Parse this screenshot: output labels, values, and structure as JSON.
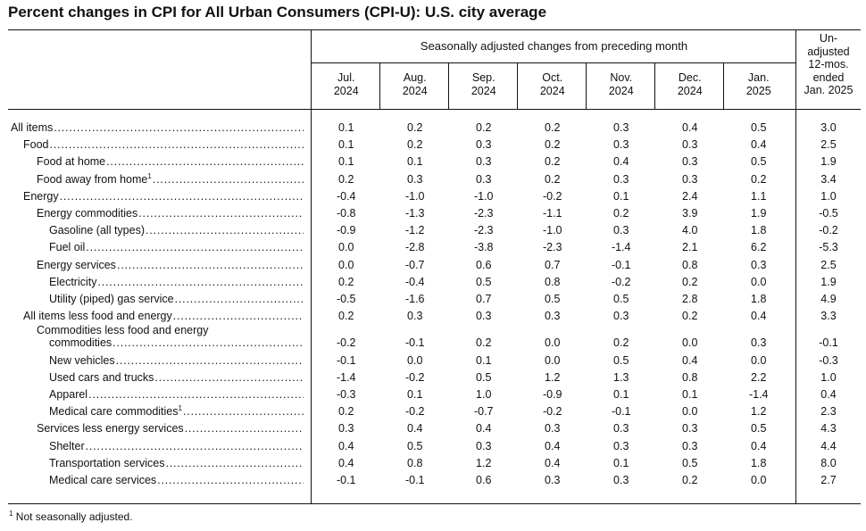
{
  "title": "Percent changes in CPI for All Urban Consumers (CPI-U): U.S. city average",
  "header": {
    "seasonal_label": "Seasonally adjusted changes from preceding month",
    "unadjusted_label": [
      "Un-",
      "adjusted",
      "12-mos.",
      "ended",
      "Jan. 2025"
    ],
    "months": [
      [
        "Jul.",
        "2024"
      ],
      [
        "Aug.",
        "2024"
      ],
      [
        "Sep.",
        "2024"
      ],
      [
        "Oct.",
        "2024"
      ],
      [
        "Nov.",
        "2024"
      ],
      [
        "Dec.",
        "2024"
      ],
      [
        "Jan.",
        "2025"
      ]
    ]
  },
  "rows": [
    {
      "label": "All items",
      "indent": 0,
      "values": [
        "0.1",
        "0.2",
        "0.2",
        "0.2",
        "0.3",
        "0.4",
        "0.5"
      ],
      "unadjusted": "3.0"
    },
    {
      "label": "Food",
      "indent": 1,
      "values": [
        "0.1",
        "0.2",
        "0.3",
        "0.2",
        "0.3",
        "0.3",
        "0.4"
      ],
      "unadjusted": "2.5"
    },
    {
      "label": "Food at home",
      "indent": 2,
      "values": [
        "0.1",
        "0.1",
        "0.3",
        "0.2",
        "0.4",
        "0.3",
        "0.5"
      ],
      "unadjusted": "1.9"
    },
    {
      "label": "Food away from home",
      "sup": "1",
      "indent": 2,
      "values": [
        "0.2",
        "0.3",
        "0.3",
        "0.2",
        "0.3",
        "0.3",
        "0.2"
      ],
      "unadjusted": "3.4"
    },
    {
      "label": "Energy",
      "indent": 1,
      "values": [
        "-0.4",
        "-1.0",
        "-1.0",
        "-0.2",
        "0.1",
        "2.4",
        "1.1"
      ],
      "unadjusted": "1.0"
    },
    {
      "label": "Energy commodities",
      "indent": 2,
      "values": [
        "-0.8",
        "-1.3",
        "-2.3",
        "-1.1",
        "0.2",
        "3.9",
        "1.9"
      ],
      "unadjusted": "-0.5"
    },
    {
      "label": "Gasoline (all types)",
      "indent": 3,
      "values": [
        "-0.9",
        "-1.2",
        "-2.3",
        "-1.0",
        "0.3",
        "4.0",
        "1.8"
      ],
      "unadjusted": "-0.2"
    },
    {
      "label": "Fuel oil",
      "indent": 3,
      "values": [
        "0.0",
        "-2.8",
        "-3.8",
        "-2.3",
        "-1.4",
        "2.1",
        "6.2"
      ],
      "unadjusted": "-5.3"
    },
    {
      "label": "Energy services",
      "indent": 2,
      "values": [
        "0.0",
        "-0.7",
        "0.6",
        "0.7",
        "-0.1",
        "0.8",
        "0.3"
      ],
      "unadjusted": "2.5"
    },
    {
      "label": "Electricity",
      "indent": 3,
      "values": [
        "0.2",
        "-0.4",
        "0.5",
        "0.8",
        "-0.2",
        "0.2",
        "0.0"
      ],
      "unadjusted": "1.9"
    },
    {
      "label": "Utility (piped) gas service",
      "indent": 3,
      "values": [
        "-0.5",
        "-1.6",
        "0.7",
        "0.5",
        "0.5",
        "2.8",
        "1.8"
      ],
      "unadjusted": "4.9"
    },
    {
      "label": "All items less food and energy",
      "indent": 1,
      "values": [
        "0.2",
        "0.3",
        "0.3",
        "0.3",
        "0.3",
        "0.2",
        "0.4"
      ],
      "unadjusted": "3.3"
    },
    {
      "label": "Commodities less food and energy",
      "label2": "commodities",
      "indent": 2,
      "values": [
        "-0.2",
        "-0.1",
        "0.2",
        "0.0",
        "0.2",
        "0.0",
        "0.3"
      ],
      "unadjusted": "-0.1",
      "tall": true
    },
    {
      "label": "New vehicles",
      "indent": 3,
      "values": [
        "-0.1",
        "0.0",
        "0.1",
        "0.0",
        "0.5",
        "0.4",
        "0.0"
      ],
      "unadjusted": "-0.3"
    },
    {
      "label": "Used cars and trucks",
      "indent": 3,
      "values": [
        "-1.4",
        "-0.2",
        "0.5",
        "1.2",
        "1.3",
        "0.8",
        "2.2"
      ],
      "unadjusted": "1.0"
    },
    {
      "label": "Apparel",
      "indent": 3,
      "values": [
        "-0.3",
        "0.1",
        "1.0",
        "-0.9",
        "0.1",
        "0.1",
        "-1.4"
      ],
      "unadjusted": "0.4"
    },
    {
      "label": "Medical care commodities",
      "sup": "1",
      "indent": 3,
      "values": [
        "0.2",
        "-0.2",
        "-0.7",
        "-0.2",
        "-0.1",
        "0.0",
        "1.2"
      ],
      "unadjusted": "2.3"
    },
    {
      "label": "Services less energy services",
      "indent": 2,
      "values": [
        "0.3",
        "0.4",
        "0.4",
        "0.3",
        "0.3",
        "0.3",
        "0.5"
      ],
      "unadjusted": "4.3"
    },
    {
      "label": "Shelter",
      "indent": 3,
      "values": [
        "0.4",
        "0.5",
        "0.3",
        "0.4",
        "0.3",
        "0.3",
        "0.4"
      ],
      "unadjusted": "4.4"
    },
    {
      "label": "Transportation services",
      "indent": 3,
      "values": [
        "0.4",
        "0.8",
        "1.2",
        "0.4",
        "0.1",
        "0.5",
        "1.8"
      ],
      "unadjusted": "8.0"
    },
    {
      "label": "Medical care services",
      "indent": 3,
      "values": [
        "-0.1",
        "-0.1",
        "0.6",
        "0.3",
        "0.3",
        "0.2",
        "0.0"
      ],
      "unadjusted": "2.7"
    }
  ],
  "footnote": {
    "marker": "1",
    "text": " Not seasonally adjusted."
  }
}
